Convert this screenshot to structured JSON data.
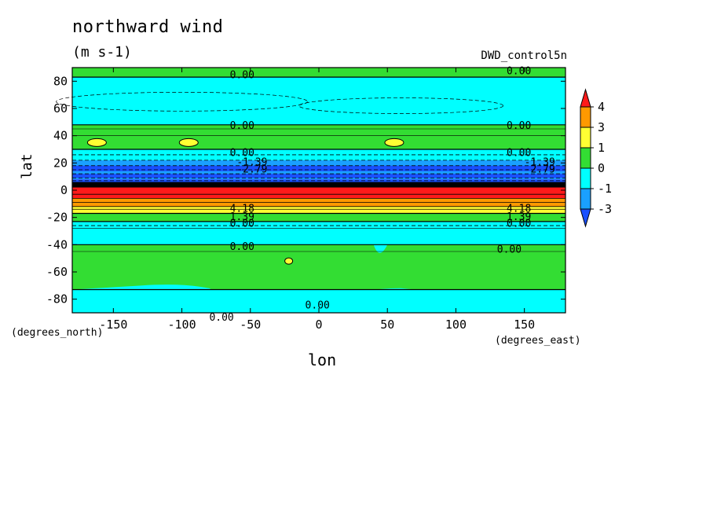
{
  "chart_data": {
    "type": "heatmap",
    "subtype": "filled-contour map",
    "title": "northward wind",
    "units": "(m s-1)",
    "dataset": "DWD_control5n",
    "xlabel": "lon",
    "ylabel": "lat",
    "x_units": "(degrees_east)",
    "y_units": "(degrees_north)",
    "xlim": [
      -180,
      180
    ],
    "ylim": [
      -90,
      90
    ],
    "xticks": [
      "-150",
      "-100",
      "-50",
      "0",
      "50",
      "100",
      "150"
    ],
    "yticks": [
      "80",
      "60",
      "40",
      "20",
      "0",
      "-20",
      "-40",
      "-60",
      "-80"
    ],
    "colorbar": {
      "labels": [
        "4",
        "3",
        "1",
        "0",
        "-1",
        "-3"
      ],
      "colors": [
        "#ff1a1a",
        "#ff9900",
        "#ffff33",
        "#33dd33",
        "#00ffff",
        "#1aa0ff",
        "#1a50ff"
      ]
    },
    "bands": [
      {
        "lat_from": 90,
        "lat_to": 83,
        "level": "0 to 1"
      },
      {
        "lat_from": 83,
        "lat_to": 48,
        "level": "-1 to 0"
      },
      {
        "lat_from": 48,
        "lat_to": 30,
        "level": "0 to 1"
      },
      {
        "lat_from": 30,
        "lat_to": 22,
        "level": "-1 to 0"
      },
      {
        "lat_from": 22,
        "lat_to": 8,
        "level": "-3 to -1"
      },
      {
        "lat_from": 8,
        "lat_to": 3,
        "level": "below -3"
      },
      {
        "lat_from": 3,
        "lat_to": -6,
        "level": "above 4"
      },
      {
        "lat_from": -6,
        "lat_to": -12,
        "level": "3 to 4"
      },
      {
        "lat_from": -12,
        "lat_to": -17,
        "level": "1 to 3"
      },
      {
        "lat_from": -17,
        "lat_to": -23,
        "level": "0 to 1"
      },
      {
        "lat_from": -23,
        "lat_to": -40,
        "level": "-1 to 0"
      },
      {
        "lat_from": -40,
        "lat_to": -73,
        "level": "0 to 1"
      },
      {
        "lat_from": -73,
        "lat_to": -90,
        "level": "-1 to 0"
      }
    ],
    "contour_labels": [
      "0.00",
      "-1.39",
      "-2.79",
      "4.18",
      "2.79",
      "1.39"
    ]
  }
}
